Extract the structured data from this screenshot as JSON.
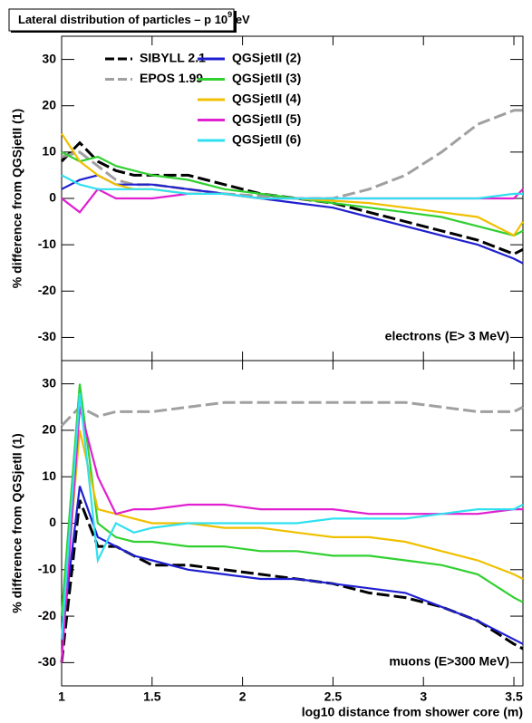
{
  "title": {
    "text": "Lateral distribution of particles – p 10",
    "exponent": "9",
    "unit": "eV"
  },
  "chart_data": [
    {
      "type": "line",
      "ylabel": "% difference from QGSjetII (1)",
      "annotation": "electrons (E> 3 MeV)",
      "xlim": [
        1,
        3.55
      ],
      "xticks": [
        1,
        1.5,
        2,
        2.5,
        3,
        3.5
      ],
      "ylim": [
        -35,
        35
      ],
      "yticks": [
        -30,
        -20,
        -10,
        0,
        10,
        20,
        30
      ],
      "x": [
        1,
        1.1,
        1.2,
        1.3,
        1.4,
        1.5,
        1.7,
        1.9,
        2.1,
        2.3,
        2.5,
        2.7,
        2.9,
        3.1,
        3.3,
        3.5,
        3.55
      ],
      "series": [
        {
          "name": "SIBYLL 2.1",
          "color": "#000000",
          "dash": true,
          "values": [
            8,
            12,
            8,
            6,
            5,
            5,
            5,
            3,
            1,
            0,
            -1,
            -3,
            -5,
            -7,
            -9,
            -12,
            -11
          ]
        },
        {
          "name": "EPOS 1.99",
          "color": "#a0a0a0",
          "dash": true,
          "values": [
            9,
            10,
            7,
            4,
            3,
            3,
            2,
            1,
            0.5,
            0,
            0,
            2,
            5,
            10,
            16,
            19,
            19
          ]
        },
        {
          "name": "QGSjetII (2)",
          "color": "#1f1fd0",
          "values": [
            2,
            4,
            5,
            3,
            3,
            3,
            2,
            1,
            0,
            -1,
            -2,
            -4,
            -6,
            -8,
            -10,
            -13,
            -14
          ]
        },
        {
          "name": "QGSjetII (3)",
          "color": "#30d030",
          "values": [
            10,
            8,
            9,
            7,
            6,
            5,
            4,
            2,
            1,
            0,
            -1,
            -2,
            -3,
            -4,
            -6,
            -8,
            -7
          ]
        },
        {
          "name": "QGSjetII (4)",
          "color": "#f0c000",
          "values": [
            14,
            8,
            5,
            3,
            2,
            2,
            1,
            1,
            0,
            0,
            -0.5,
            -1,
            -2,
            -3,
            -4,
            -8,
            -5
          ]
        },
        {
          "name": "QGSjetII (5)",
          "color": "#e020d0",
          "values": [
            0,
            -3,
            2,
            0,
            0,
            0,
            1,
            1,
            0,
            0,
            0,
            0,
            0,
            0,
            0,
            0,
            2
          ]
        },
        {
          "name": "QGSjetII (6)",
          "color": "#30e0f0",
          "values": [
            5,
            3,
            2,
            2,
            2,
            2,
            1,
            1,
            0,
            0,
            0,
            0,
            0,
            0,
            0,
            1,
            1
          ]
        }
      ]
    },
    {
      "type": "line",
      "ylabel": "% difference from QGSjetII (1)",
      "annotation": "muons (E>300 MeV)",
      "xlabel": "log10 distance from shower core (m)",
      "xlim": [
        1,
        3.55
      ],
      "xticks": [
        1,
        1.5,
        2,
        2.5,
        3,
        3.5
      ],
      "ylim": [
        -35,
        35
      ],
      "yticks": [
        -30,
        -20,
        -10,
        0,
        10,
        20,
        30
      ],
      "x": [
        1,
        1.1,
        1.2,
        1.3,
        1.4,
        1.5,
        1.7,
        1.9,
        2.1,
        2.3,
        2.5,
        2.7,
        2.9,
        3.1,
        3.3,
        3.5,
        3.55
      ],
      "series": [
        {
          "color": "#000000",
          "dash": true,
          "values": [
            -30,
            5,
            -5,
            -5,
            -7,
            -9,
            -9,
            -10,
            -11,
            -12,
            -13,
            -15,
            -16,
            -18,
            -21,
            -26,
            -27
          ]
        },
        {
          "color": "#a0a0a0",
          "dash": true,
          "values": [
            21,
            25,
            23,
            24,
            24,
            24,
            25,
            26,
            26,
            26,
            26,
            26,
            26,
            25,
            24,
            24,
            25
          ]
        },
        {
          "color": "#1f1fd0",
          "values": [
            -25,
            8,
            -3,
            -5,
            -7,
            -8,
            -10,
            -11,
            -12,
            -12,
            -13,
            -14,
            -15,
            -18,
            -21,
            -25,
            -26
          ]
        },
        {
          "color": "#30d030",
          "values": [
            -20,
            30,
            0,
            -3,
            -4,
            -4,
            -5,
            -5,
            -6,
            -6,
            -7,
            -7,
            -8,
            -9,
            -11,
            -16,
            -17
          ]
        },
        {
          "color": "#f0c000",
          "values": [
            -25,
            20,
            3,
            2,
            1,
            0,
            0,
            -1,
            -1,
            -2,
            -3,
            -3,
            -4,
            -6,
            -8,
            -11,
            -12
          ]
        },
        {
          "color": "#e020d0",
          "values": [
            -30,
            25,
            10,
            2,
            3,
            3,
            4,
            4,
            3,
            3,
            3,
            2,
            2,
            2,
            2,
            3,
            3
          ]
        },
        {
          "color": "#30e0f0",
          "values": [
            -25,
            28,
            -8,
            0,
            -2,
            -1,
            0,
            0,
            0,
            0,
            1,
            1,
            1,
            2,
            3,
            3,
            4
          ]
        }
      ]
    }
  ]
}
